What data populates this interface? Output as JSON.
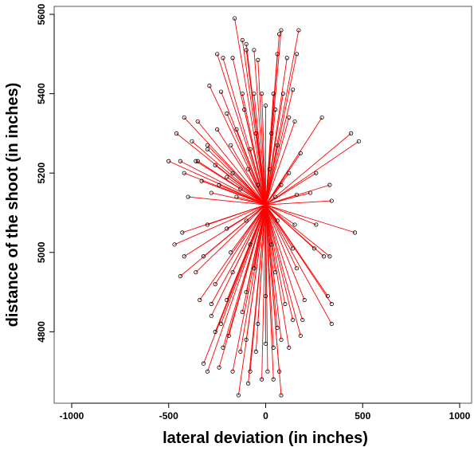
{
  "chart_data": {
    "type": "scatter",
    "title": "",
    "xlabel": "lateral deviation (in inches)",
    "ylabel": "distance of the shoot (in inches)",
    "xlim": [
      -1000,
      1000
    ],
    "ylim": [
      4620,
      5600
    ],
    "x_ticks": [
      -1000,
      -500,
      0,
      500,
      1000
    ],
    "y_ticks": [
      4800,
      5000,
      5200,
      5400,
      5600
    ],
    "grid": false,
    "legend": "none",
    "origin": {
      "x": 0,
      "y": 5120
    },
    "colors": {
      "segment": "#ff0000",
      "point": "#000000",
      "axes": "#000000"
    },
    "points": [
      [
        -160,
        5590
      ],
      [
        -100,
        5525
      ],
      [
        -120,
        5535
      ],
      [
        80,
        5560
      ],
      [
        170,
        5560
      ],
      [
        70,
        5550
      ],
      [
        -250,
        5500
      ],
      [
        -220,
        5490
      ],
      [
        -100,
        5510
      ],
      [
        -60,
        5510
      ],
      [
        160,
        5500
      ],
      [
        60,
        5500
      ],
      [
        -40,
        5485
      ],
      [
        -170,
        5490
      ],
      [
        110,
        5490
      ],
      [
        -290,
        5420
      ],
      [
        -230,
        5405
      ],
      [
        -120,
        5400
      ],
      [
        -60,
        5400
      ],
      [
        -20,
        5400
      ],
      [
        40,
        5400
      ],
      [
        90,
        5400
      ],
      [
        140,
        5410
      ],
      [
        -200,
        5350
      ],
      [
        -110,
        5360
      ],
      [
        0,
        5370
      ],
      [
        50,
        5360
      ],
      [
        120,
        5340
      ],
      [
        -420,
        5340
      ],
      [
        -350,
        5330
      ],
      [
        -250,
        5310
      ],
      [
        -150,
        5310
      ],
      [
        -50,
        5300
      ],
      [
        30,
        5300
      ],
      [
        150,
        5330
      ],
      [
        290,
        5340
      ],
      [
        -460,
        5300
      ],
      [
        -380,
        5280
      ],
      [
        -300,
        5260
      ],
      [
        -180,
        5270
      ],
      [
        -80,
        5260
      ],
      [
        60,
        5270
      ],
      [
        180,
        5250
      ],
      [
        440,
        5300
      ],
      [
        480,
        5280
      ],
      [
        -500,
        5230
      ],
      [
        -440,
        5230
      ],
      [
        -350,
        5230
      ],
      [
        -260,
        5220
      ],
      [
        -170,
        5200
      ],
      [
        -90,
        5210
      ],
      [
        20,
        5210
      ],
      [
        120,
        5200
      ],
      [
        260,
        5200
      ],
      [
        330,
        5170
      ],
      [
        -420,
        5200
      ],
      [
        -200,
        5190
      ],
      [
        -130,
        5160
      ],
      [
        -40,
        5170
      ],
      [
        80,
        5170
      ],
      [
        -400,
        5140
      ],
      [
        -280,
        5150
      ],
      [
        -150,
        5140
      ],
      [
        50,
        5140
      ],
      [
        160,
        5145
      ],
      [
        -360,
        5230
      ],
      [
        -330,
        5180
      ],
      [
        -300,
        5270
      ],
      [
        -240,
        5170
      ],
      [
        230,
        5150
      ],
      [
        340,
        5130
      ],
      [
        -430,
        5050
      ],
      [
        -470,
        5020
      ],
      [
        -300,
        5070
      ],
      [
        -200,
        5060
      ],
      [
        -100,
        5080
      ],
      [
        60,
        5080
      ],
      [
        150,
        5070
      ],
      [
        260,
        5070
      ],
      [
        460,
        5050
      ],
      [
        -420,
        4990
      ],
      [
        -320,
        4990
      ],
      [
        -180,
        5000
      ],
      [
        -80,
        5020
      ],
      [
        30,
        5020
      ],
      [
        140,
        5010
      ],
      [
        250,
        5010
      ],
      [
        330,
        4990
      ],
      [
        -440,
        4940
      ],
      [
        -360,
        4950
      ],
      [
        -260,
        4920
      ],
      [
        -170,
        4950
      ],
      [
        -60,
        4960
      ],
      [
        50,
        4950
      ],
      [
        160,
        4960
      ],
      [
        300,
        4990
      ],
      [
        -340,
        4880
      ],
      [
        -280,
        4870
      ],
      [
        -200,
        4880
      ],
      [
        -100,
        4900
      ],
      [
        0,
        4890
      ],
      [
        100,
        4870
      ],
      [
        200,
        4880
      ],
      [
        320,
        4890
      ],
      [
        340,
        4870
      ],
      [
        -280,
        4840
      ],
      [
        -230,
        4820
      ],
      [
        -120,
        4850
      ],
      [
        -40,
        4820
      ],
      [
        60,
        4810
      ],
      [
        140,
        4830
      ],
      [
        190,
        4830
      ],
      [
        340,
        4820
      ],
      [
        -260,
        4800
      ],
      [
        -190,
        4790
      ],
      [
        -100,
        4780
      ],
      [
        0,
        4770
      ],
      [
        80,
        4780
      ],
      [
        180,
        4790
      ],
      [
        -220,
        4760
      ],
      [
        -130,
        4750
      ],
      [
        -50,
        4750
      ],
      [
        40,
        4760
      ],
      [
        120,
        4760
      ],
      [
        -320,
        4720
      ],
      [
        -240,
        4710
      ],
      [
        -170,
        4700
      ],
      [
        -80,
        4700
      ],
      [
        10,
        4700
      ],
      [
        70,
        4700
      ],
      [
        -300,
        4700
      ],
      [
        -90,
        4670
      ],
      [
        -20,
        4680
      ],
      [
        40,
        4680
      ],
      [
        -140,
        4640
      ],
      [
        80,
        4640
      ]
    ]
  }
}
